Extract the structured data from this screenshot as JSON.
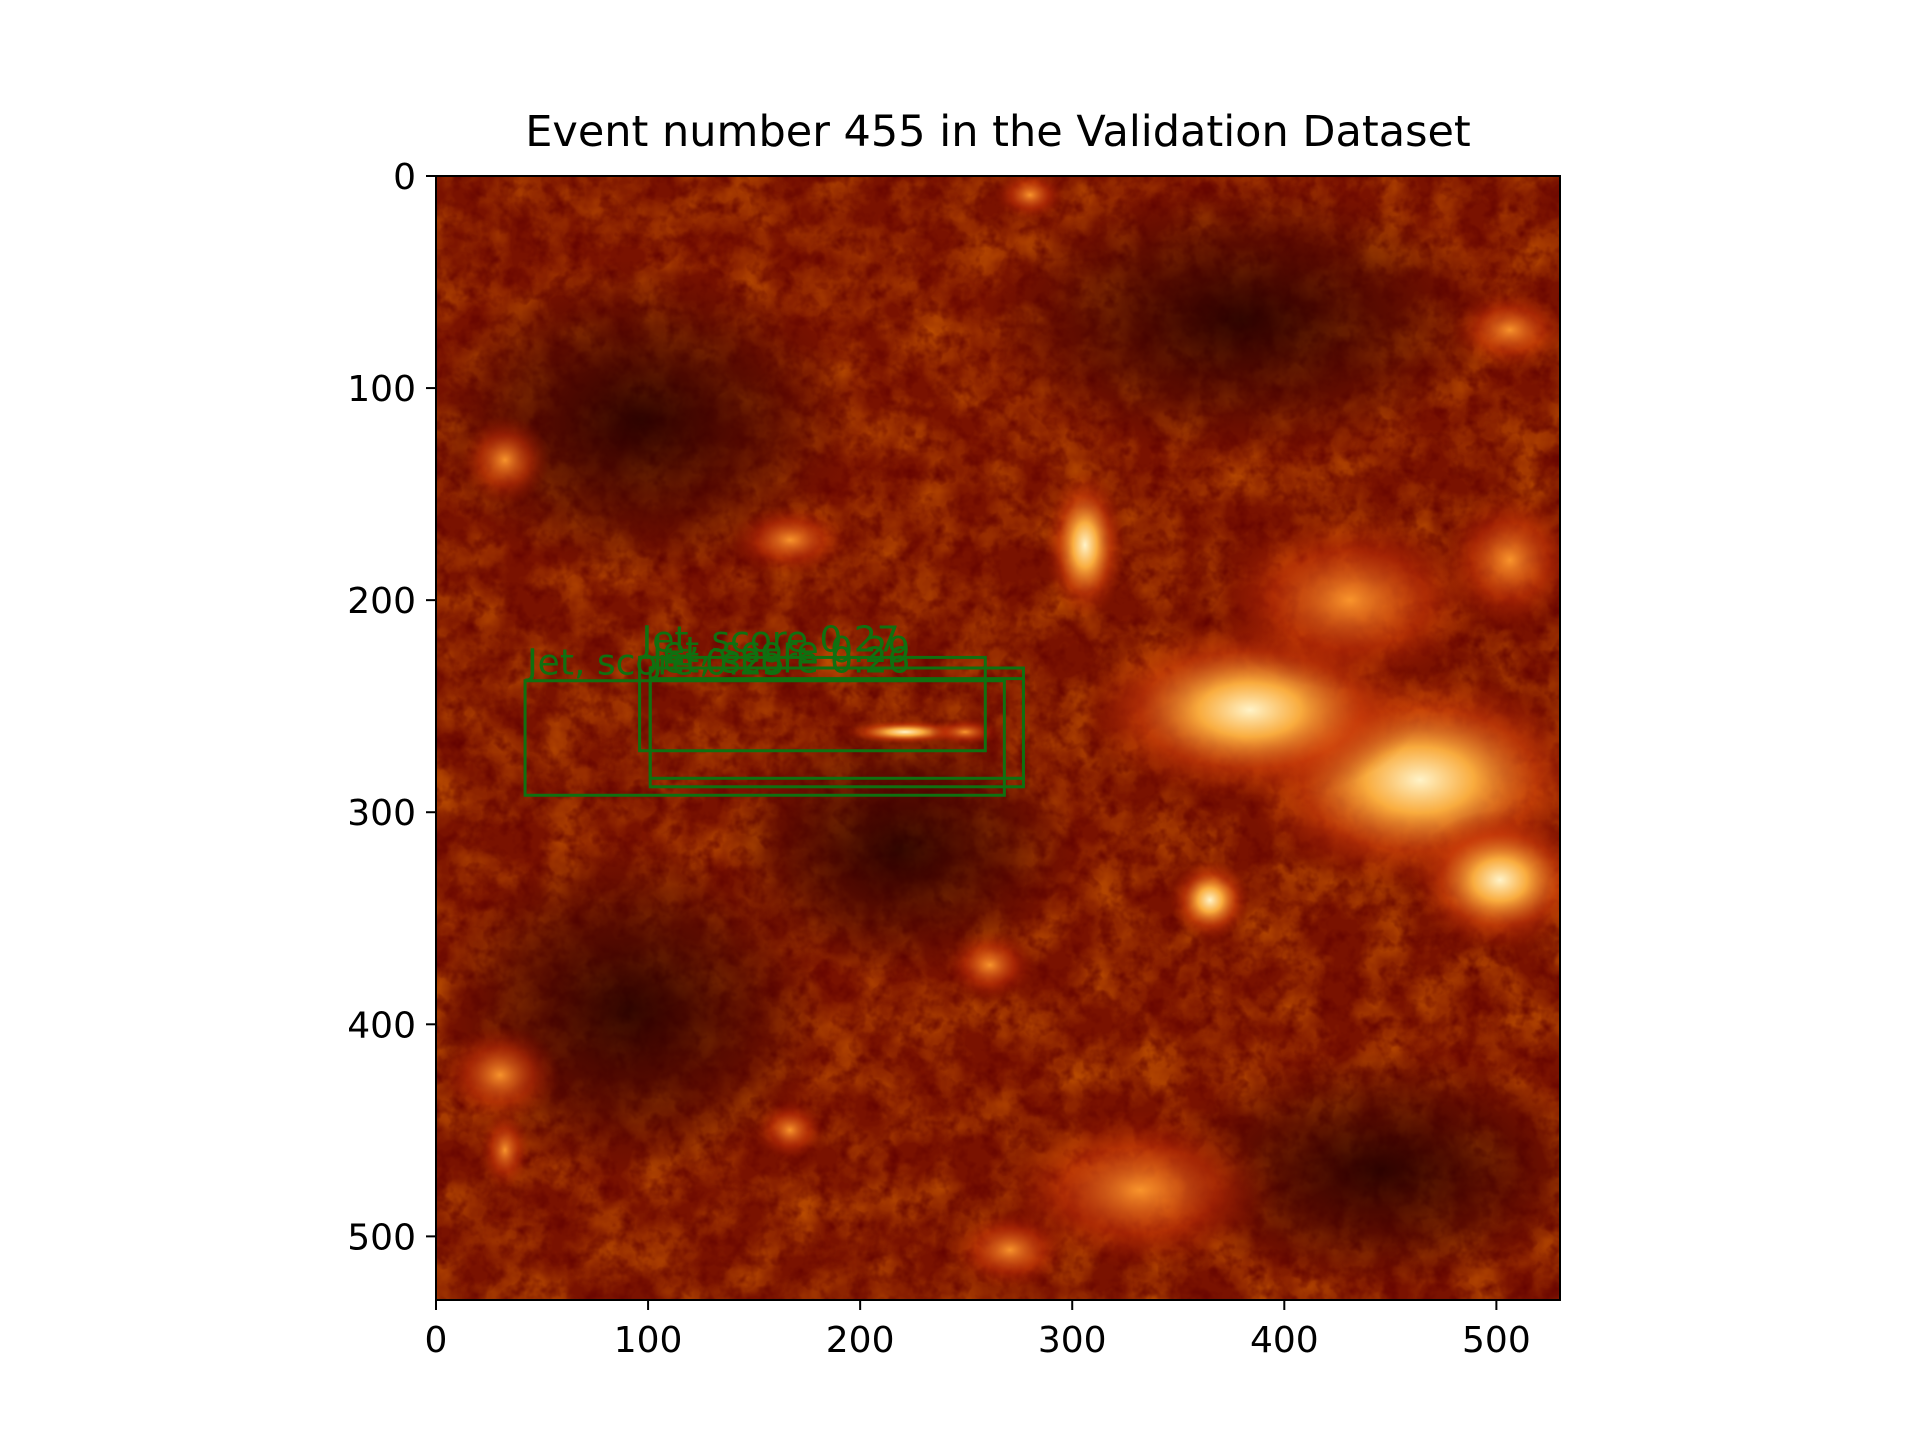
{
  "figure": {
    "title": "Event number 455 in the Validation Dataset"
  },
  "image": {
    "description_colormap": "solar-hot",
    "extent": [
      0,
      530
    ],
    "x_ticks": [
      {
        "value": 0,
        "label": "0"
      },
      {
        "value": 100,
        "label": "100"
      },
      {
        "value": 200,
        "label": "200"
      },
      {
        "value": 300,
        "label": "300"
      },
      {
        "value": 400,
        "label": "400"
      },
      {
        "value": 500,
        "label": "500"
      }
    ],
    "y_ticks": [
      {
        "value": 0,
        "label": "0"
      },
      {
        "value": 100,
        "label": "100"
      },
      {
        "value": 200,
        "label": "200"
      },
      {
        "value": 300,
        "label": "300"
      },
      {
        "value": 400,
        "label": "400"
      },
      {
        "value": 500,
        "label": "500"
      }
    ]
  },
  "detections": [
    {
      "label": "Jet, score 0.25",
      "x0": 42,
      "y0": 238,
      "x1": 268,
      "y1": 292,
      "color": "#107010"
    },
    {
      "label": "Jet, score 0.27",
      "x0": 96,
      "y0": 227,
      "x1": 259,
      "y1": 271,
      "color": "#107010"
    },
    {
      "label": "Jet, score 0.26",
      "x0": 101,
      "y0": 237,
      "x1": 277,
      "y1": 288,
      "color": "#107010"
    },
    {
      "label": "Jet, score 0.29",
      "x0": 101,
      "y0": 232,
      "x1": 277,
      "y1": 284,
      "color": "#107010"
    }
  ],
  "colors": {
    "box_color": "#107010",
    "axis_color": "#000000"
  }
}
